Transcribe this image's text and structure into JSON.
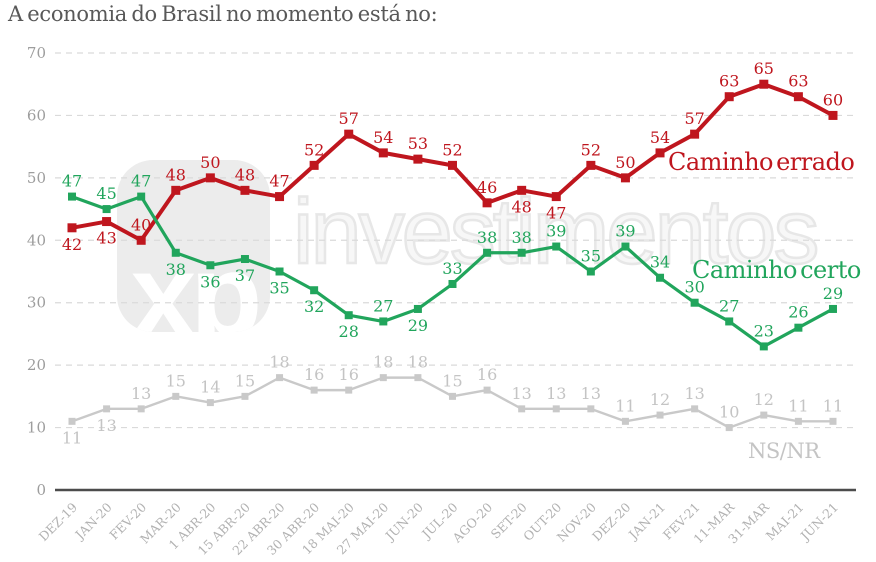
{
  "title": "A economia do Brasil no momento está no:",
  "watermark": {
    "logo": "xp",
    "brand": "investimentos"
  },
  "chart_data": {
    "type": "line",
    "title": "A economia do Brasil no momento está no:",
    "xlabel": "",
    "ylabel": "",
    "ylim": [
      0,
      70
    ],
    "yticks": [
      0,
      10,
      20,
      30,
      40,
      50,
      60,
      70
    ],
    "grid": "horizontal-dashed",
    "legend_position": "inline-labels-right",
    "categories": [
      "DEZ-19",
      "JAN-20",
      "FEV-20",
      "MAR-20",
      "1 ABR-20",
      "15 ABR-20",
      "22 ABR-20",
      "30 ABR-20",
      "18 MAI-20",
      "27 MAI-20",
      "JUN-20",
      "JUL-20",
      "AGO-20",
      "SET-20",
      "OUT-20",
      "NOV-20",
      "DEZ-20",
      "JAN-21",
      "FEV-21",
      "11-MAR",
      "31-MAR",
      "MAI-21",
      "JUN-21"
    ],
    "series": [
      {
        "name": "Caminho errado",
        "color": "#bf161e",
        "marker": "square",
        "values": [
          42,
          43,
          40,
          48,
          50,
          48,
          47,
          52,
          57,
          54,
          53,
          52,
          46,
          48,
          47,
          52,
          50,
          54,
          57,
          63,
          65,
          63,
          60
        ]
      },
      {
        "name": "Caminho certo",
        "color": "#21a55c",
        "marker": "square",
        "values": [
          47,
          45,
          47,
          38,
          36,
          37,
          35,
          32,
          28,
          27,
          29,
          33,
          38,
          38,
          39,
          35,
          39,
          34,
          30,
          27,
          23,
          26,
          29
        ]
      },
      {
        "name": "NS/NR",
        "color": "#c9c9c9",
        "label_color": "#c4c4c4",
        "marker": "square",
        "values": [
          11,
          13,
          13,
          15,
          14,
          15,
          18,
          16,
          16,
          18,
          18,
          15,
          16,
          13,
          13,
          13,
          11,
          12,
          13,
          10,
          12,
          11,
          11
        ]
      }
    ]
  }
}
